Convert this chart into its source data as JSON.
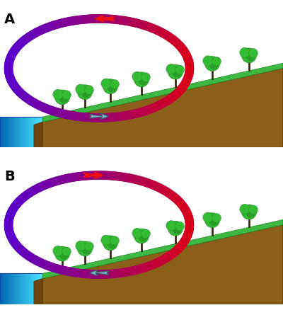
{
  "bg_color": "#ffffff",
  "land_color": "#8B5E1A",
  "land_edge_color": "#5C3D0A",
  "land_right_color": "#C8922A",
  "grass_color": "#3CB843",
  "grass_edge": "#228B22",
  "water_deep": "#1155BB",
  "water_mid": "#4499DD",
  "water_light": "#88DDFF",
  "tree_trunk": "#3A2000",
  "tree_green1": "#33BB33",
  "tree_green2": "#228B22",
  "arrow_red": "#EE1111",
  "arrow_blue_fill": "#7AAFCC",
  "arrow_blue_edge": "#445566",
  "label_fontsize": 14
}
